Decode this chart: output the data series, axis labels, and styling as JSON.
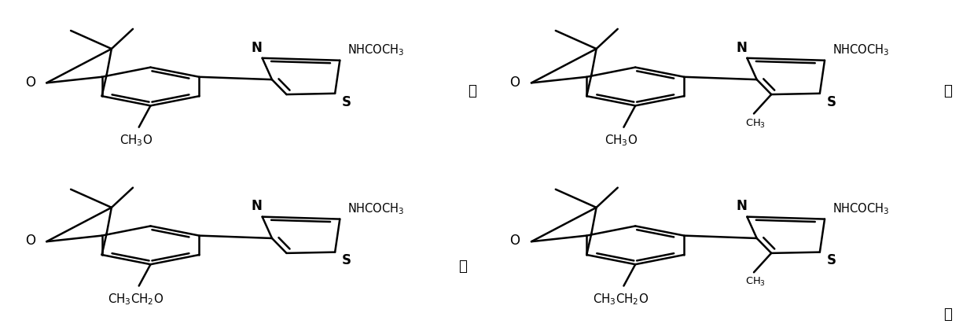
{
  "background_color": "#ffffff",
  "linewidth": 1.8,
  "fontsize": 12,
  "structures": [
    {
      "bx": 0.055,
      "by": 0.52,
      "sub": "CH$_3$O",
      "methyl": false
    },
    {
      "bx": 0.555,
      "by": 0.52,
      "sub": "CH$_3$O",
      "methyl": true
    },
    {
      "bx": 0.055,
      "by": 0.04,
      "sub": "CH$_3$CH$_2$O",
      "methyl": false
    },
    {
      "bx": 0.555,
      "by": 0.04,
      "sub": "CH$_3$CH$_2$O",
      "methyl": true
    }
  ],
  "comma1": [
    0.485,
    0.73
  ],
  "comma2": [
    0.975,
    0.73
  ],
  "period": [
    0.975,
    0.055
  ],
  "or_text": [
    0.475,
    0.2
  ],
  "or_label": "或"
}
